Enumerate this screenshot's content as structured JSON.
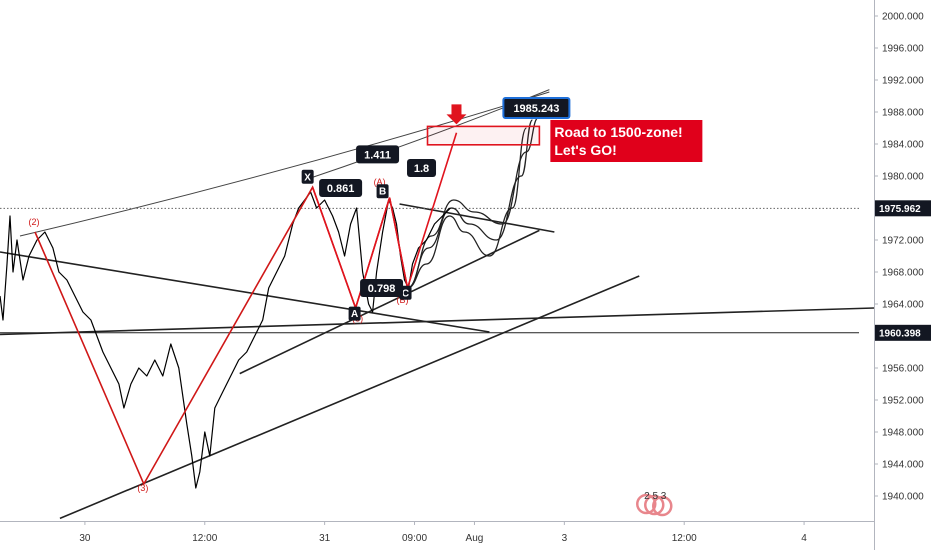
{
  "chart_data": {
    "type": "line",
    "title": "",
    "ylim": [
      1937,
      2002
    ],
    "y_ticks": [
      1940,
      1944,
      1948,
      1952,
      1956,
      1960,
      1964,
      1968,
      1972,
      1976,
      1980,
      1984,
      1988,
      1992,
      1996,
      2000
    ],
    "y_tick_labels": [
      "1940.000",
      "1944.000",
      "1948.000",
      "1952.000",
      "1956.000",
      "1960.000",
      "1964.000",
      "1968.000",
      "1972.000",
      "1976.000",
      "1980.000",
      "1984.000",
      "1988.000",
      "1992.000",
      "1996.000",
      "2000.000"
    ],
    "x_ticks": [
      {
        "label": "30",
        "t": 18
      },
      {
        "label": "12:00",
        "t": 30
      },
      {
        "label": "31",
        "t": 42
      },
      {
        "label": "09:00",
        "t": 51
      },
      {
        "label": "Aug",
        "t": 57
      },
      {
        "label": "3",
        "t": 66
      },
      {
        "label": "12:00",
        "t": 78
      },
      {
        "label": "4",
        "t": 90
      }
    ],
    "xlim": [
      9.5,
      97
    ],
    "series": [
      {
        "values": [
          [
            9.5,
            1965
          ],
          [
            9.8,
            1962
          ],
          [
            10.2,
            1969
          ],
          [
            10.5,
            1975
          ],
          [
            10.8,
            1968
          ],
          [
            11.2,
            1972
          ],
          [
            11.8,
            1967
          ],
          [
            12.4,
            1970
          ],
          [
            13.2,
            1972
          ],
          [
            14.0,
            1973
          ],
          [
            14.8,
            1971
          ],
          [
            15.4,
            1968
          ],
          [
            16.2,
            1967
          ],
          [
            17.0,
            1965
          ],
          [
            17.8,
            1963
          ],
          [
            18.6,
            1962
          ],
          [
            19.2,
            1960
          ],
          [
            19.8,
            1958
          ],
          [
            20.6,
            1956
          ],
          [
            21.4,
            1954
          ],
          [
            21.9,
            1951
          ],
          [
            22.6,
            1954
          ],
          [
            23.4,
            1956
          ],
          [
            24.2,
            1955
          ],
          [
            25.0,
            1957
          ],
          [
            25.8,
            1955
          ],
          [
            26.6,
            1959
          ],
          [
            27.4,
            1956
          ],
          [
            28.2,
            1949
          ],
          [
            28.7,
            1945
          ],
          [
            29.1,
            1941
          ],
          [
            29.5,
            1943
          ],
          [
            30.0,
            1948
          ],
          [
            30.5,
            1945
          ],
          [
            31.0,
            1951
          ],
          [
            31.8,
            1953
          ],
          [
            32.6,
            1955
          ],
          [
            33.4,
            1957
          ],
          [
            34.2,
            1958
          ],
          [
            35.0,
            1960
          ],
          [
            35.8,
            1962
          ],
          [
            36.4,
            1966
          ],
          [
            37.2,
            1968
          ],
          [
            38.0,
            1970
          ],
          [
            38.8,
            1974
          ],
          [
            39.4,
            1976
          ],
          [
            40.0,
            1977
          ],
          [
            40.6,
            1978
          ],
          [
            41.2,
            1976
          ],
          [
            42.0,
            1977
          ],
          [
            42.8,
            1975
          ],
          [
            43.4,
            1973
          ],
          [
            44.0,
            1970
          ],
          [
            44.6,
            1974
          ],
          [
            45.2,
            1976
          ],
          [
            45.8,
            1968
          ],
          [
            46.4,
            1964
          ],
          [
            46.8,
            1963
          ],
          [
            47.2,
            1968
          ],
          [
            47.8,
            1973
          ],
          [
            48.4,
            1977
          ],
          [
            48.8,
            1976
          ],
          [
            49.2,
            1974
          ],
          [
            49.6,
            1970
          ],
          [
            50.0,
            1967
          ],
          [
            50.4,
            1966
          ],
          [
            50.8,
            1969
          ],
          [
            51.4,
            1971
          ],
          [
            52.2,
            1972
          ],
          [
            53.0,
            1974
          ],
          [
            53.8,
            1975
          ],
          [
            54.6,
            1976
          ]
        ]
      }
    ],
    "lines": [
      {
        "kind": "trendline",
        "color": "#222222",
        "x1": 9.5,
        "y1": 1960.2,
        "x2": 97,
        "y2": 1963.5
      },
      {
        "kind": "trendline",
        "color": "#222222",
        "x1": 9.5,
        "y1": 1970.5,
        "x2": 58.5,
        "y2": 1960.5
      },
      {
        "kind": "trendline",
        "color": "#222222",
        "x1": 15.5,
        "y1": 1937.2,
        "x2": 73.5,
        "y2": 1967.5
      },
      {
        "kind": "trendline",
        "color": "#222222",
        "x1": 33.5,
        "y1": 1955.3,
        "x2": 63.5,
        "y2": 1973.2
      },
      {
        "kind": "trendline",
        "color": "#222222",
        "x1": 49.5,
        "y1": 1976.5,
        "x2": 65,
        "y2": 1973
      },
      {
        "kind": "pitchfork",
        "color": "#444444",
        "x1": 11.5,
        "y1": 1972.5,
        "x2": 64.5,
        "y2": 1990.5,
        "curve": 10
      },
      {
        "kind": "pitchfork",
        "color": "#444444",
        "x1": 40,
        "y1": 1979.5,
        "x2": 64.5,
        "y2": 1990.8,
        "curve": 4
      },
      {
        "kind": "dotted",
        "color": "#666666",
        "x1": 9.5,
        "y1": 1975.96,
        "x2": 95.5,
        "y2": 1975.96
      },
      {
        "kind": "horizontal",
        "color": "#222222",
        "x1": 9.5,
        "y1": 1960.4,
        "x2": 95.5,
        "y2": 1960.4
      }
    ],
    "elliott_wave": [
      [
        13.0,
        1973
      ],
      [
        23.9,
        1941.5
      ],
      [
        40.8,
        1978.6
      ],
      [
        45.1,
        1963.5
      ],
      [
        48.5,
        1977.3
      ],
      [
        50.3,
        1966
      ]
    ],
    "harmonic": [
      [
        40.8,
        1978.6
      ],
      [
        45.1,
        1963.5
      ],
      [
        48.5,
        1977.3
      ],
      [
        50.3,
        1966
      ],
      [
        55.2,
        1985.4
      ]
    ],
    "projection_paths": [
      [
        [
          50.3,
          1966
        ],
        [
          52.2,
          1969
        ],
        [
          54.5,
          1975
        ],
        [
          56,
          1973
        ],
        [
          58.5,
          1970
        ],
        [
          60.8,
          1976
        ],
        [
          62.2,
          1986
        ]
      ],
      [
        [
          50.3,
          1966
        ],
        [
          52.4,
          1971
        ],
        [
          54.7,
          1976
        ],
        [
          56.5,
          1974
        ],
        [
          59.2,
          1972
        ],
        [
          61.7,
          1980
        ],
        [
          62.8,
          1987
        ]
      ],
      [
        [
          50.3,
          1966
        ],
        [
          52.7,
          1972.5
        ],
        [
          54.9,
          1977
        ],
        [
          57,
          1975.5
        ],
        [
          59.8,
          1974
        ],
        [
          62.2,
          1983
        ],
        [
          63.4,
          1987.3
        ]
      ]
    ],
    "wave_labels": [
      {
        "text": "(2)",
        "x": 12.9,
        "y": 1973.9
      },
      {
        "text": "(3)",
        "x": 23.8,
        "y": 1940.6
      },
      {
        "text": "(A)",
        "x": 47.5,
        "y": 1978.9
      },
      {
        "text": "(5)",
        "x": 45.3,
        "y": 1961.8
      },
      {
        "text": "(B)",
        "x": 49.8,
        "y": 1964.1
      }
    ],
    "point_labels": [
      {
        "text": "X",
        "x": 40.3,
        "y": 1979.9
      },
      {
        "text": "A",
        "x": 45.0,
        "y": 1962.8
      },
      {
        "text": "B",
        "x": 47.8,
        "y": 1978.1
      },
      {
        "text": "C",
        "x": 50.1,
        "y": 1965.4
      }
    ],
    "ratio_labels": [
      {
        "text": "0.861",
        "x": 43.6,
        "y": 1978.5
      },
      {
        "text": "1.411",
        "x": 47.3,
        "y": 1982.7
      },
      {
        "text": "1.8",
        "x": 51.7,
        "y": 1981.0
      },
      {
        "text": "0.798",
        "x": 47.7,
        "y": 1966.0
      }
    ],
    "target_zone": {
      "x1": 52.3,
      "x2": 63.5,
      "y1": 1983.9,
      "y2": 1986.2
    },
    "target_label": {
      "text": "1985.243",
      "x": 63.2,
      "y": 1988.5
    },
    "price_tags": [
      {
        "text": "1975.962",
        "value": 1975.962,
        "style": "dark"
      },
      {
        "text": "1960.398",
        "value": 1960.398,
        "style": "dark"
      }
    ],
    "annotation": {
      "lines": [
        "Road to 1500-zone!",
        "Let's GO!"
      ],
      "color": "#e0001b"
    }
  },
  "watermark": {
    "digits": "2 5 3"
  },
  "colors": {
    "price": "#000000",
    "wave": "#d01818",
    "harmonic": "#e0141e",
    "label_bg": "#131722",
    "target_blue": "#1e6fd9",
    "grid": "#e8e8e8"
  }
}
